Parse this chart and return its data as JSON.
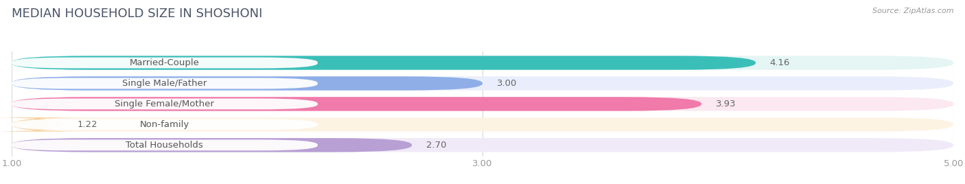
{
  "title": "MEDIAN HOUSEHOLD SIZE IN SHOSHONI",
  "source": "Source: ZipAtlas.com",
  "categories": [
    "Married-Couple",
    "Single Male/Father",
    "Single Female/Mother",
    "Non-family",
    "Total Households"
  ],
  "values": [
    4.16,
    3.0,
    3.93,
    1.22,
    2.7
  ],
  "bar_colors": [
    "#3abfb8",
    "#8faee8",
    "#f07aaa",
    "#f5c990",
    "#b89fd4"
  ],
  "bar_bg_colors": [
    "#e4f5f4",
    "#eaeefc",
    "#fce8f0",
    "#fdf3e3",
    "#f0eaf8"
  ],
  "xlim_data": [
    1.0,
    5.0
  ],
  "xticks": [
    1.0,
    3.0,
    5.0
  ],
  "value_labels": [
    "4.16",
    "3.00",
    "3.93",
    "1.22",
    "2.70"
  ],
  "title_fontsize": 13,
  "label_fontsize": 9.5,
  "value_fontsize": 9.5,
  "background_color": "#ffffff",
  "bar_height": 0.68
}
